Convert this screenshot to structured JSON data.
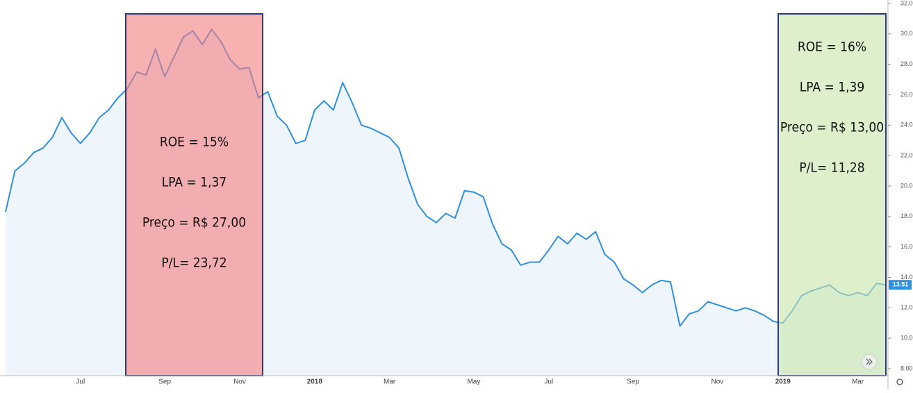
{
  "chart_data": {
    "type": "line",
    "categories": [
      null,
      null,
      null,
      null,
      null,
      null,
      null,
      null,
      "Jul",
      null,
      null,
      null,
      null,
      null,
      null,
      null,
      null,
      "Sep",
      null,
      null,
      null,
      null,
      null,
      null,
      null,
      "Nov",
      null,
      null,
      null,
      null,
      null,
      null,
      null,
      "2018",
      null,
      null,
      null,
      null,
      null,
      null,
      null,
      "Mar",
      null,
      null,
      null,
      null,
      null,
      null,
      null,
      null,
      "May",
      null,
      null,
      null,
      null,
      null,
      null,
      null,
      "Jul",
      null,
      null,
      null,
      null,
      null,
      null,
      null,
      null,
      "Sep",
      null,
      null,
      null,
      null,
      null,
      null,
      null,
      null,
      "Nov",
      null,
      null,
      null,
      null,
      null,
      null,
      "2019",
      null,
      null,
      null,
      null,
      null,
      null,
      null,
      "Mar",
      null,
      null,
      null
    ],
    "values": [
      18.3,
      21.0,
      21.5,
      22.2,
      22.5,
      23.2,
      24.5,
      23.5,
      22.8,
      23.5,
      24.5,
      25.0,
      25.8,
      26.4,
      27.5,
      27.3,
      29.0,
      27.2,
      28.5,
      29.8,
      30.2,
      29.3,
      30.3,
      29.5,
      28.3,
      27.7,
      27.8,
      25.8,
      26.2,
      24.6,
      24.0,
      22.8,
      23.0,
      25.0,
      25.6,
      25.0,
      26.8,
      25.5,
      24.0,
      23.8,
      23.5,
      23.2,
      22.5,
      20.5,
      18.8,
      18.0,
      17.6,
      18.2,
      17.9,
      19.7,
      19.6,
      19.3,
      17.5,
      16.2,
      15.8,
      14.8,
      15.0,
      15.0,
      15.8,
      16.7,
      16.2,
      16.9,
      16.5,
      17.0,
      15.5,
      15.0,
      13.9,
      13.5,
      13.0,
      13.5,
      13.8,
      13.7,
      10.8,
      11.6,
      11.8,
      12.4,
      12.2,
      12.0,
      11.8,
      12.0,
      11.8,
      11.5,
      11.1,
      11.0,
      11.8,
      12.8,
      13.1,
      13.3,
      13.5,
      13.0,
      12.8,
      13.0,
      12.8,
      13.6,
      13.51
    ],
    "color": "#2f8fe0",
    "ylim": [
      7.54,
      32.23
    ],
    "yticks": [
      {
        "value": 8,
        "label": "8.00"
      },
      {
        "value": 10,
        "label": "10.00"
      },
      {
        "value": 12,
        "label": "12.00"
      },
      {
        "value": 14,
        "label": "14.00"
      },
      {
        "value": 16,
        "label": "16.00"
      },
      {
        "value": 18,
        "label": "18.00"
      },
      {
        "value": 20,
        "label": "20.00"
      },
      {
        "value": 22,
        "label": "22.00"
      },
      {
        "value": 24,
        "label": "24.00"
      },
      {
        "value": 26,
        "label": "26.00"
      },
      {
        "value": 28,
        "label": "28.00"
      },
      {
        "value": 30,
        "label": "30.00"
      },
      {
        "value": 32,
        "label": "32.00"
      }
    ],
    "annotations": [
      {
        "color": "#f47d7d",
        "lines": [
          "ROE = 15%",
          "LPA = 1,37",
          "Preço = R$ 27,00",
          "P/L= 23,72"
        ]
      },
      {
        "color": "#c8e6a8",
        "lines": [
          "ROE = 16%",
          "LPA = 1,39",
          "Preço = R$ 13,00",
          "P/L= 11,28"
        ]
      }
    ]
  }
}
